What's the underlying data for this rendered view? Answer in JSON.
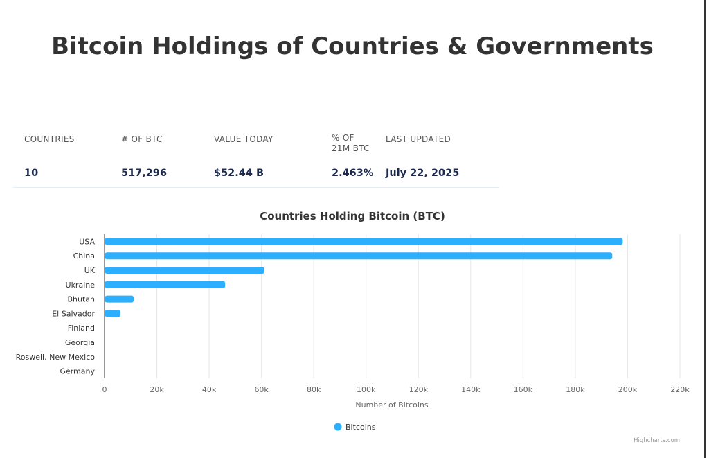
{
  "page": {
    "title": "Bitcoin Holdings of Countries & Governments"
  },
  "stats": {
    "headers": [
      "COUNTRIES",
      "# OF BTC",
      "VALUE TODAY",
      "% OF 21M BTC",
      "LAST UPDATED"
    ],
    "values": [
      "10",
      "517,296",
      "$52.44 B",
      "2.463%",
      "July 22, 2025"
    ]
  },
  "chart_data": {
    "type": "bar",
    "orientation": "horizontal",
    "title": "Countries Holding Bitcoin (BTC)",
    "xlabel": "Number of Bitcoins",
    "ylabel": "",
    "categories": [
      "USA",
      "China",
      "UK",
      "Ukraine",
      "Bhutan",
      "El Salvador",
      "Finland",
      "Georgia",
      "Roswell, New Mexico",
      "Germany"
    ],
    "series": [
      {
        "name": "Bitcoins",
        "values": [
          198000,
          194000,
          61000,
          46000,
          11000,
          6000,
          90,
          66,
          0,
          0
        ]
      }
    ],
    "xlim": [
      0,
      220000
    ],
    "ticks": [
      "0",
      "20k",
      "40k",
      "60k",
      "80k",
      "100k",
      "120k",
      "140k",
      "160k",
      "180k",
      "200k",
      "220k"
    ],
    "grid": true,
    "legend": "bottom-center",
    "colors": {
      "bar": "#2caffe",
      "grid": "#e6e6e6",
      "axis": "#333333"
    },
    "credits": "Highcharts.com"
  }
}
